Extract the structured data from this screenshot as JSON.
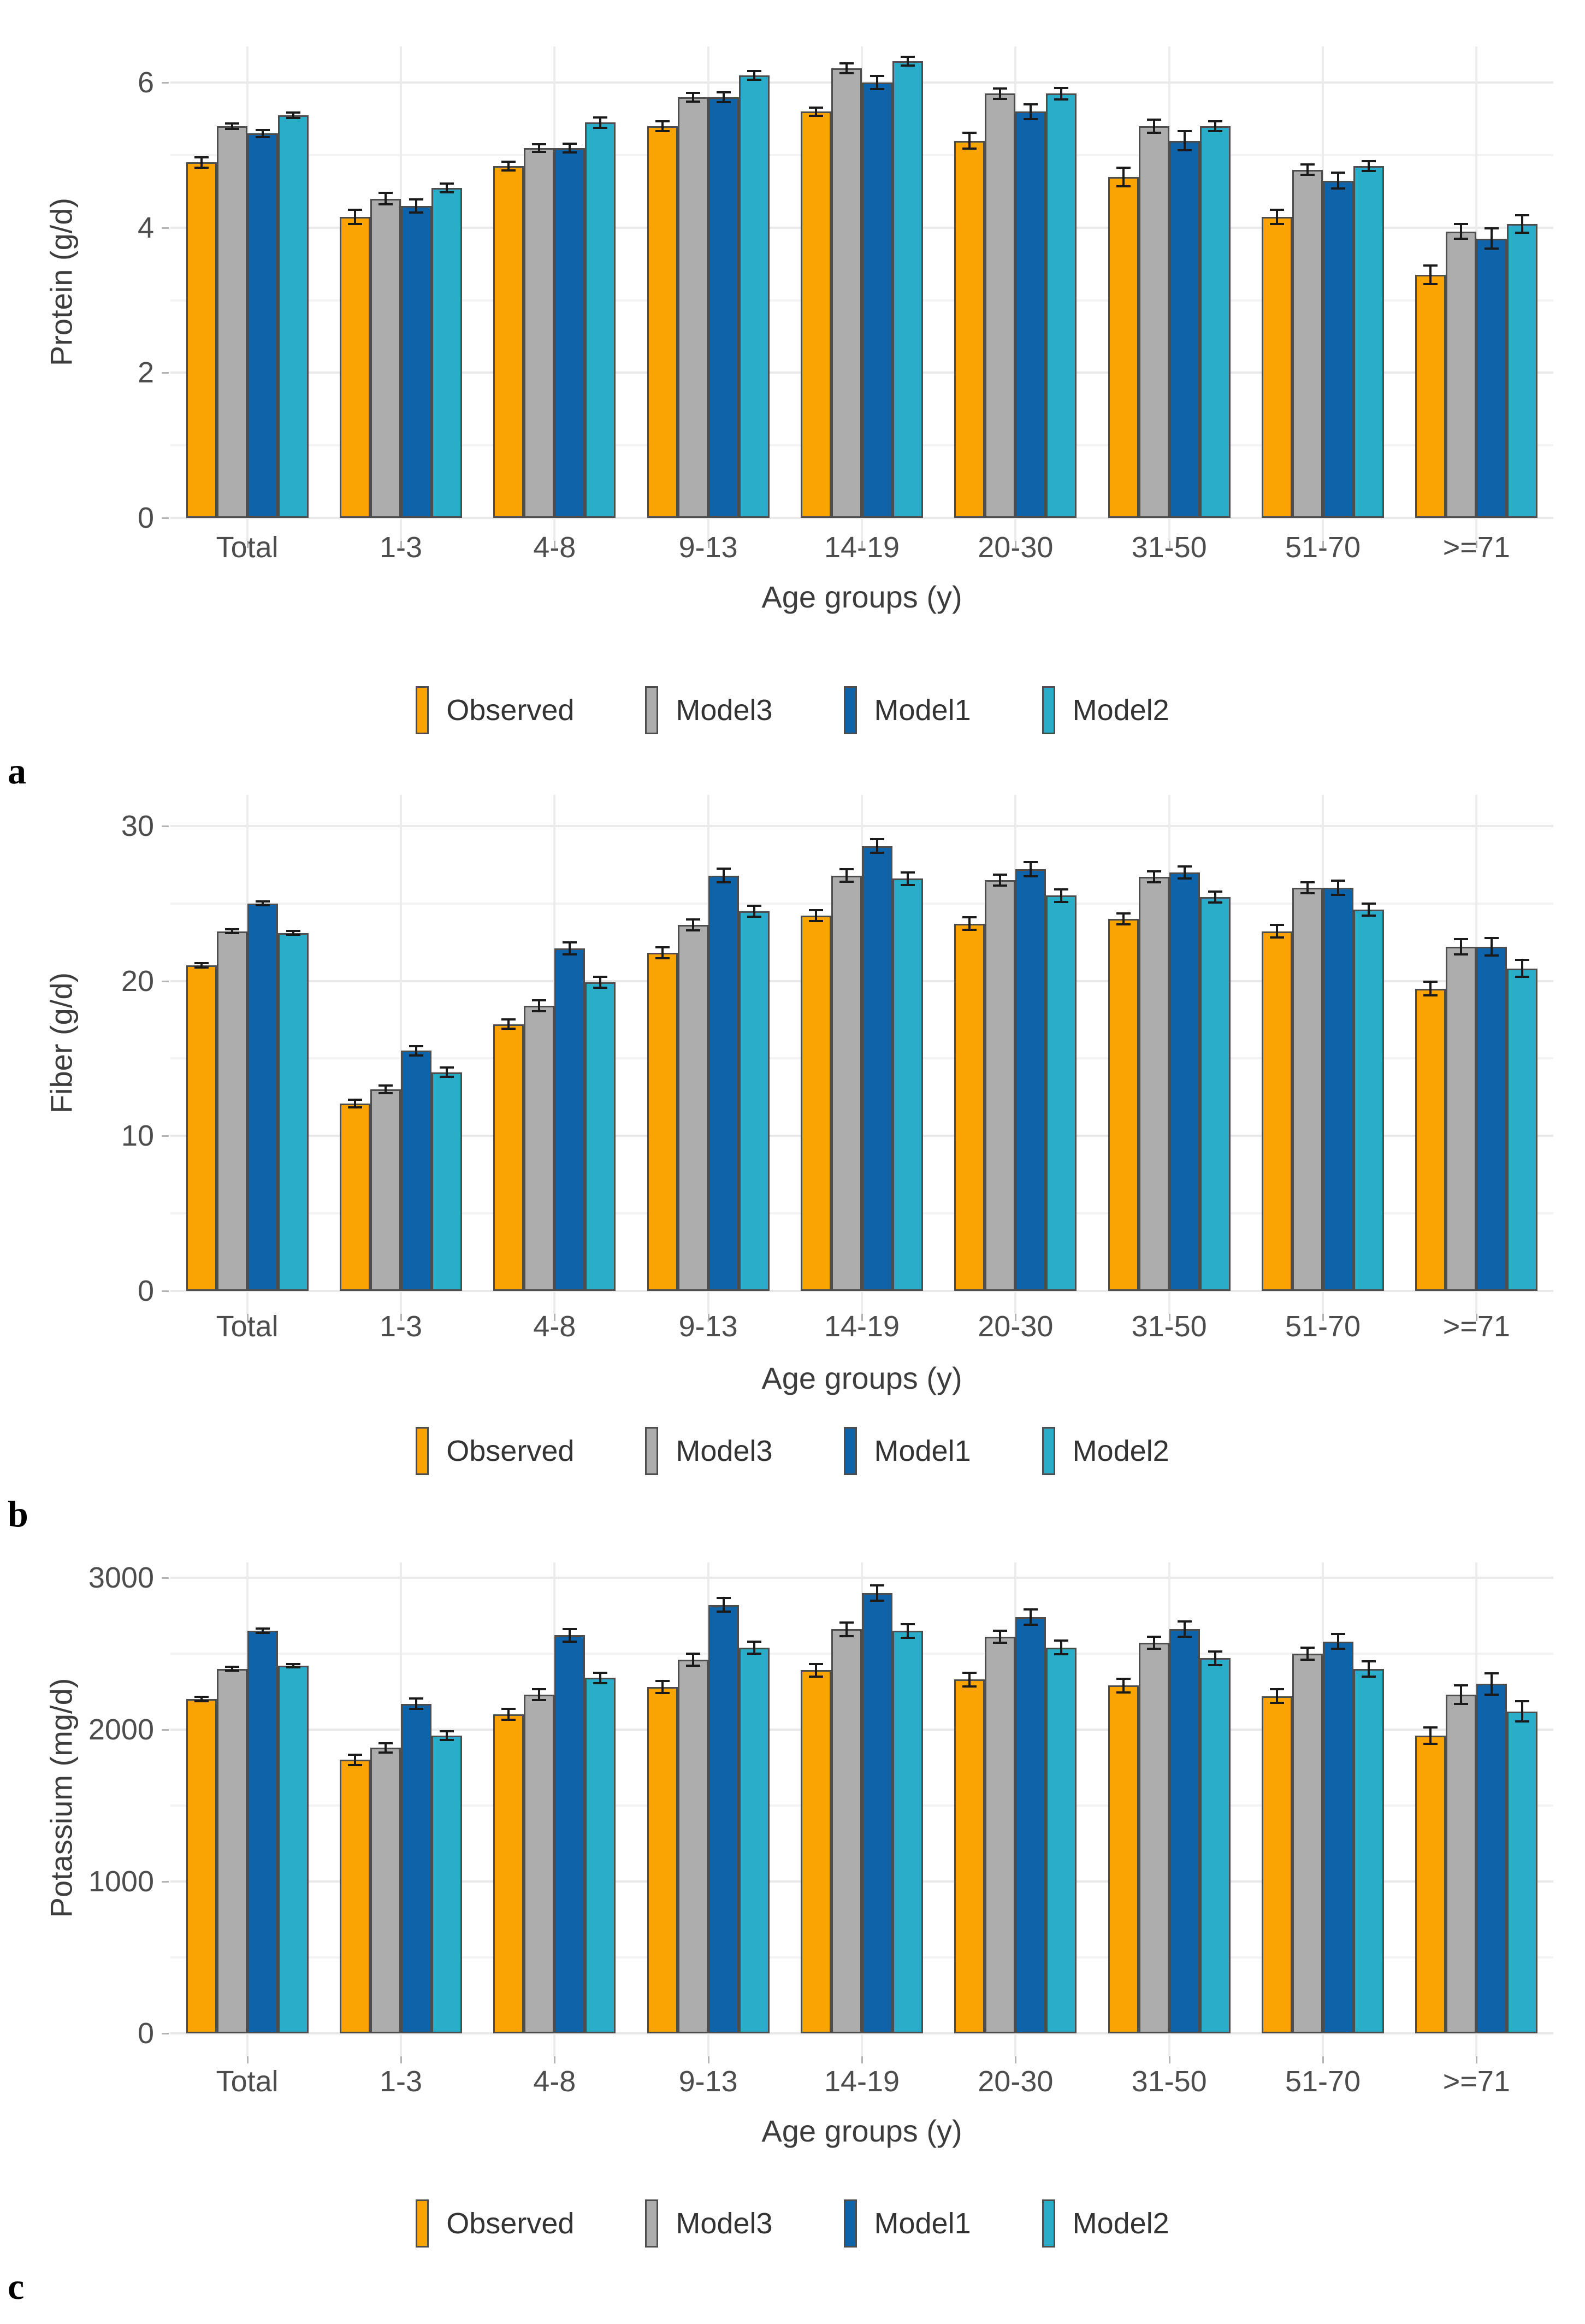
{
  "figure": {
    "series_labels": [
      "Observed",
      "Model3",
      "Model1",
      "Model2"
    ],
    "colors": {
      "observed": "#F9A402",
      "model3": "#ADADAD",
      "model1": "#0F63A8",
      "model2": "#29ADC8",
      "bar_border": "#4D4D4D",
      "error_bar": "#1A1A1A",
      "grid_major": "#E9E9E9",
      "grid_minor": "#F3F3F3",
      "axis_text": "#4D4D4D"
    }
  },
  "chart_data": [
    {
      "type": "bar",
      "panel_letter": "a",
      "title": "",
      "ylabel": "Protein (g/d)",
      "xlabel": "Age groups (y)",
      "ylim": [
        0,
        6.5
      ],
      "yticks": [
        0,
        2,
        4,
        6
      ],
      "yticks_minor": [
        1,
        3,
        5
      ],
      "grid": true,
      "legend_position": "bottom",
      "categories": [
        "Total",
        "1-3",
        "4-8",
        "9-13",
        "14-19",
        "20-30",
        "31-50",
        "51-70",
        ">=71"
      ],
      "series": [
        {
          "name": "Observed",
          "color": "#F9A402",
          "values": [
            4.9,
            4.15,
            4.85,
            5.4,
            5.6,
            5.2,
            4.7,
            4.15,
            3.35
          ],
          "errors": [
            0.07,
            0.1,
            0.06,
            0.07,
            0.06,
            0.11,
            0.13,
            0.1,
            0.13
          ]
        },
        {
          "name": "Model3",
          "color": "#ADADAD",
          "values": [
            5.4,
            4.4,
            5.1,
            5.8,
            6.2,
            5.85,
            5.4,
            4.8,
            3.95
          ],
          "errors": [
            0.04,
            0.08,
            0.05,
            0.06,
            0.07,
            0.07,
            0.09,
            0.07,
            0.1
          ]
        },
        {
          "name": "Model1",
          "color": "#0F63A8",
          "values": [
            5.3,
            4.3,
            5.1,
            5.8,
            6.0,
            5.6,
            5.2,
            4.65,
            3.85
          ],
          "errors": [
            0.05,
            0.09,
            0.06,
            0.07,
            0.09,
            0.1,
            0.13,
            0.11,
            0.14
          ]
        },
        {
          "name": "Model2",
          "color": "#29ADC8",
          "values": [
            5.55,
            4.55,
            5.45,
            6.1,
            6.3,
            5.85,
            5.4,
            4.85,
            4.05
          ],
          "errors": [
            0.04,
            0.06,
            0.07,
            0.06,
            0.06,
            0.08,
            0.07,
            0.07,
            0.12
          ]
        }
      ]
    },
    {
      "type": "bar",
      "panel_letter": "b",
      "title": "",
      "ylabel": "Fiber (g/d)",
      "xlabel": "Age groups (y)",
      "ylim": [
        0,
        32
      ],
      "yticks": [
        0,
        10,
        20,
        30
      ],
      "yticks_minor": [
        5,
        15,
        25
      ],
      "grid": true,
      "legend_position": "bottom",
      "categories": [
        "Total",
        "1-3",
        "4-8",
        "9-13",
        "14-19",
        "20-30",
        "31-50",
        "51-70",
        ">=71"
      ],
      "series": [
        {
          "name": "Observed",
          "color": "#F9A402",
          "values": [
            21.0,
            12.1,
            17.2,
            21.8,
            24.2,
            23.7,
            24.0,
            23.2,
            19.5
          ],
          "errors": [
            0.15,
            0.25,
            0.3,
            0.35,
            0.35,
            0.4,
            0.35,
            0.4,
            0.45
          ]
        },
        {
          "name": "Model3",
          "color": "#ADADAD",
          "values": [
            23.2,
            13.0,
            18.4,
            23.6,
            26.8,
            26.5,
            26.7,
            26.0,
            22.2
          ],
          "errors": [
            0.12,
            0.25,
            0.35,
            0.35,
            0.4,
            0.35,
            0.35,
            0.35,
            0.5
          ]
        },
        {
          "name": "Model1",
          "color": "#0F63A8",
          "values": [
            25.0,
            15.5,
            22.1,
            26.8,
            28.7,
            27.2,
            27.0,
            26.0,
            22.2
          ],
          "errors": [
            0.12,
            0.3,
            0.4,
            0.45,
            0.45,
            0.45,
            0.4,
            0.45,
            0.55
          ]
        },
        {
          "name": "Model2",
          "color": "#29ADC8",
          "values": [
            23.1,
            14.1,
            19.9,
            24.5,
            26.6,
            25.5,
            25.4,
            24.6,
            20.8
          ],
          "errors": [
            0.12,
            0.3,
            0.35,
            0.35,
            0.4,
            0.4,
            0.35,
            0.4,
            0.55
          ]
        }
      ]
    },
    {
      "type": "bar",
      "panel_letter": "c",
      "title": "",
      "ylabel": "Potassium (mg/d)",
      "xlabel": "Age groups (y)",
      "ylim": [
        0,
        3100
      ],
      "yticks": [
        0,
        1000,
        2000,
        3000
      ],
      "yticks_minor": [
        500,
        1500,
        2500
      ],
      "grid": true,
      "legend_position": "bottom",
      "categories": [
        "Total",
        "1-3",
        "4-8",
        "9-13",
        "14-19",
        "20-30",
        "31-50",
        "51-70",
        ">=71"
      ],
      "series": [
        {
          "name": "Observed",
          "color": "#F9A402",
          "values": [
            2200,
            1800,
            2100,
            2280,
            2390,
            2330,
            2290,
            2220,
            1960
          ],
          "errors": [
            15,
            35,
            35,
            40,
            40,
            45,
            45,
            45,
            55
          ]
        },
        {
          "name": "Model3",
          "color": "#ADADAD",
          "values": [
            2400,
            1880,
            2230,
            2460,
            2660,
            2610,
            2570,
            2500,
            2230
          ],
          "errors": [
            12,
            30,
            35,
            40,
            45,
            40,
            40,
            40,
            60
          ]
        },
        {
          "name": "Model1",
          "color": "#0F63A8",
          "values": [
            2650,
            2170,
            2620,
            2820,
            2900,
            2740,
            2660,
            2580,
            2300
          ],
          "errors": [
            15,
            35,
            40,
            45,
            50,
            50,
            50,
            50,
            70
          ]
        },
        {
          "name": "Model2",
          "color": "#29ADC8",
          "values": [
            2420,
            1960,
            2340,
            2540,
            2650,
            2540,
            2470,
            2400,
            2120
          ],
          "errors": [
            12,
            30,
            35,
            40,
            45,
            45,
            45,
            50,
            65
          ]
        }
      ]
    }
  ]
}
